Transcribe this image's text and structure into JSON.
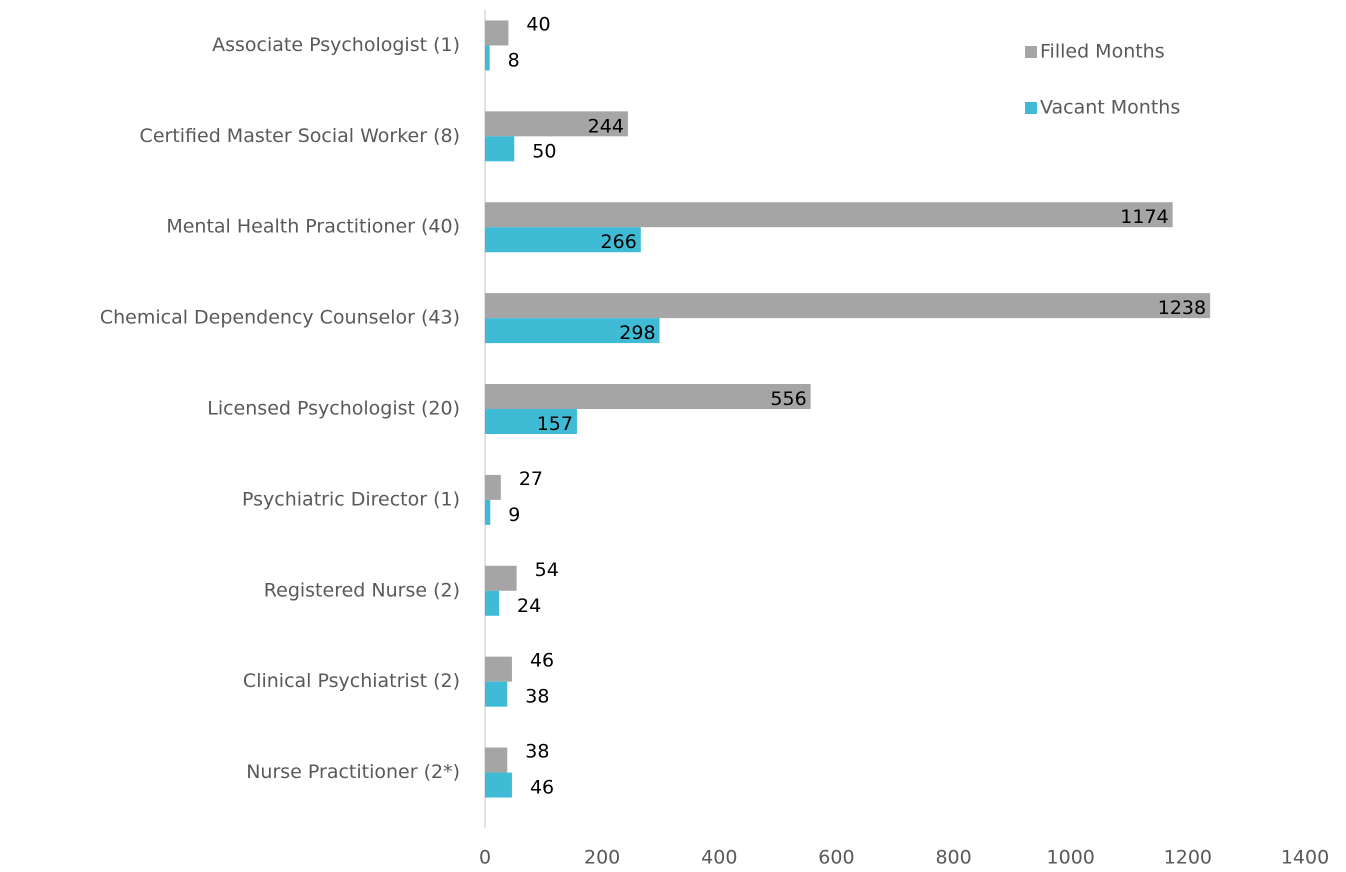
{
  "chart_data": {
    "type": "bar",
    "orientation": "horizontal",
    "categories": [
      "Associate Psychologist (1)",
      "Certified Master Social Worker (8)",
      "Mental Health Practitioner (40)",
      "Chemical Dependency Counselor (43)",
      "Licensed Psychologist (20)",
      "Psychiatric Director (1)",
      "Registered Nurse (2)",
      "Clinical Psychiatrist (2)",
      "Nurse Practitioner (2*)"
    ],
    "series": [
      {
        "name": "Filled Months",
        "color": "#a5a5a5",
        "values": [
          40,
          244,
          1174,
          1238,
          556,
          27,
          54,
          46,
          38
        ]
      },
      {
        "name": "Vacant Months",
        "color": "#3fbbd5",
        "values": [
          8,
          50,
          266,
          298,
          157,
          9,
          24,
          38,
          46
        ]
      }
    ],
    "xlim": [
      0,
      1400
    ],
    "xticks": [
      0,
      200,
      400,
      600,
      800,
      1000,
      1200,
      1400
    ],
    "legend": "top-right",
    "grid": false
  }
}
